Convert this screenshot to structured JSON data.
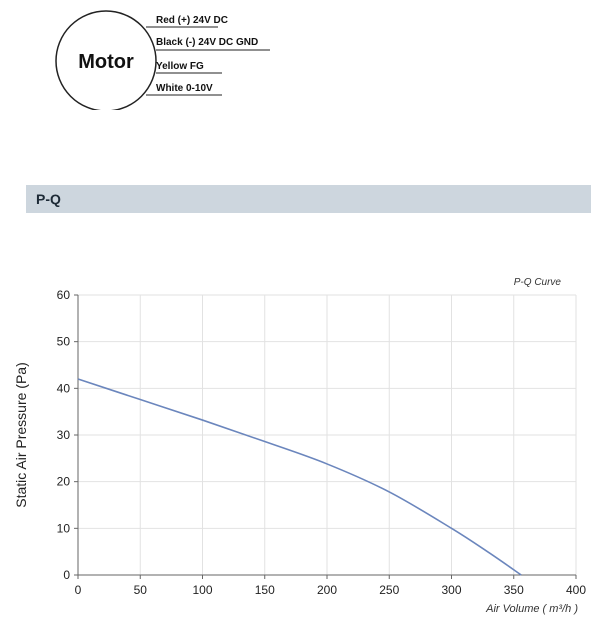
{
  "wiring": {
    "motor_label": "Motor",
    "wires": [
      {
        "label": "Red (+) 24V DC"
      },
      {
        "label": "Black (-) 24V DC GND"
      },
      {
        "label": "Yellow FG"
      },
      {
        "label": "White 0-10V"
      }
    ]
  },
  "section": {
    "title": "P-Q"
  },
  "chart_data": {
    "type": "line",
    "title": "P-Q Curve",
    "xlabel": "Air Volume ( m³/h )",
    "ylabel": "Static Air Pressure  (Pa)",
    "xlim": [
      0,
      400
    ],
    "ylim": [
      0,
      60
    ],
    "xticks": [
      0,
      50,
      100,
      150,
      200,
      250,
      300,
      350,
      400
    ],
    "yticks": [
      0,
      10,
      20,
      30,
      40,
      50,
      60
    ],
    "grid": true,
    "line_color": "#6b86bd",
    "series": [
      {
        "x": [
          0,
          50,
          100,
          150,
          200,
          250,
          300,
          330,
          356
        ],
        "y": [
          42,
          37.6,
          33.2,
          28.6,
          23.8,
          17.8,
          10,
          4.8,
          0
        ]
      }
    ]
  }
}
